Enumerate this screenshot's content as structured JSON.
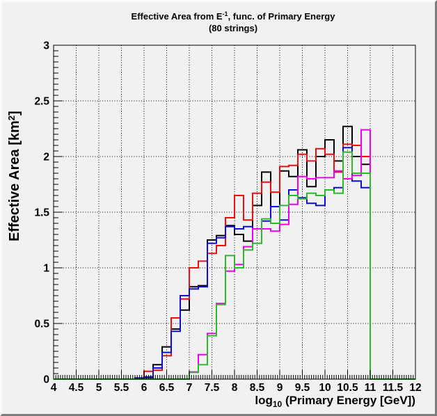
{
  "window": {
    "background": "#f1f1f1"
  },
  "title": {
    "prefix": "Effective Area from E",
    "exponent": "-1",
    "suffix": ", func. of Primary Energy",
    "subtitle": "(80 strings)"
  },
  "y_axis": {
    "title_prefix": "Effective Area [km",
    "title_sup": "2",
    "title_suffix": "]",
    "min": 0,
    "max": 3,
    "major_step": 0.5,
    "minor_step": 0.05,
    "tick_labels": [
      "0",
      "0.5",
      "1",
      "1.5",
      "2",
      "2.5",
      "3"
    ]
  },
  "x_axis": {
    "title_prefix": "log",
    "title_sub": "10",
    "title_suffix": " (Primary Energy [GeV])",
    "min": 4,
    "max": 12,
    "major_step": 0.5,
    "minor_step": 0.05,
    "tick_labels": [
      "4",
      "4.5",
      "5",
      "5.5",
      "6",
      "6.5",
      "7",
      "7.5",
      "8",
      "8.5",
      "9",
      "9.5",
      "10",
      "10.5",
      "11",
      "11.5",
      "12"
    ]
  },
  "chart_data": {
    "type": "step-histogram",
    "title": "Effective Area from E^-1, func. of Primary Energy (80 strings)",
    "subtitle": "(80 strings)",
    "xlabel": "log10 (Primary Energy [GeV])",
    "ylabel": "Effective Area [km^2]",
    "xlim": [
      4,
      12
    ],
    "ylim": [
      0,
      3
    ],
    "grid": "dotted black lines every 0.5 in x and y",
    "legend": "none",
    "bin_start": 4.0,
    "bin_width": 0.2,
    "n_bins": 40,
    "series": [
      {
        "name": "black",
        "color": "#000000",
        "values": [
          0,
          0,
          0,
          0,
          0,
          0,
          0,
          0,
          0,
          0,
          0.015,
          0.13,
          0.29,
          0.45,
          0.62,
          0.83,
          0.84,
          1.25,
          1.29,
          1.38,
          1.3,
          1.24,
          1.56,
          1.86,
          1.55,
          1.87,
          1.82,
          2.06,
          1.73,
          2.0,
          2.15,
          1.96,
          2.27,
          2.0,
          1.93,
          0,
          0,
          0,
          0,
          0
        ]
      },
      {
        "name": "red",
        "color": "#ed0e0e",
        "values": [
          0,
          0,
          0,
          0,
          0,
          0,
          0,
          0,
          0,
          0.01,
          0.07,
          0.08,
          0.21,
          0.55,
          0.72,
          1.0,
          1.06,
          1.13,
          1.2,
          1.45,
          1.65,
          1.43,
          1.67,
          1.77,
          1.68,
          1.91,
          1.92,
          2.02,
          1.96,
          2.07,
          2.02,
          1.86,
          2.11,
          2.1,
          2.0,
          0,
          0,
          0,
          0,
          0
        ]
      },
      {
        "name": "blue",
        "color": "#0d0dd8",
        "values": [
          0,
          0,
          0,
          0,
          0,
          0,
          0,
          0,
          0,
          0.01,
          0.02,
          0.1,
          0.24,
          0.43,
          0.75,
          0.81,
          0.83,
          1.22,
          1.27,
          1.37,
          1.35,
          1.37,
          1.35,
          1.42,
          1.55,
          1.43,
          1.7,
          1.63,
          1.58,
          1.56,
          1.7,
          1.72,
          2.08,
          1.78,
          1.72,
          0,
          0,
          0,
          0,
          0
        ]
      },
      {
        "name": "magenta",
        "color": "#ee00ee",
        "values": [
          0,
          0,
          0,
          0,
          0,
          0,
          0,
          0,
          0,
          0,
          0,
          0,
          0,
          0,
          0,
          0.065,
          0.22,
          0.41,
          0.68,
          0.97,
          1.03,
          1.19,
          1.35,
          1.35,
          1.33,
          1.39,
          1.57,
          1.82,
          1.8,
          1.81,
          1.81,
          1.87,
          1.8,
          1.83,
          2.24,
          0,
          0,
          0,
          0,
          0
        ]
      },
      {
        "name": "green",
        "color": "#2eb82e",
        "values": [
          0,
          0,
          0,
          0,
          0,
          0,
          0,
          0,
          0,
          0,
          0,
          0,
          0,
          0,
          0,
          0.06,
          0.13,
          0.39,
          0.67,
          1.11,
          1.0,
          1.16,
          1.22,
          1.44,
          1.4,
          1.56,
          1.65,
          1.62,
          1.67,
          1.65,
          1.7,
          1.67,
          2.04,
          1.85,
          1.85,
          0,
          0,
          0,
          0,
          0
        ]
      }
    ]
  }
}
